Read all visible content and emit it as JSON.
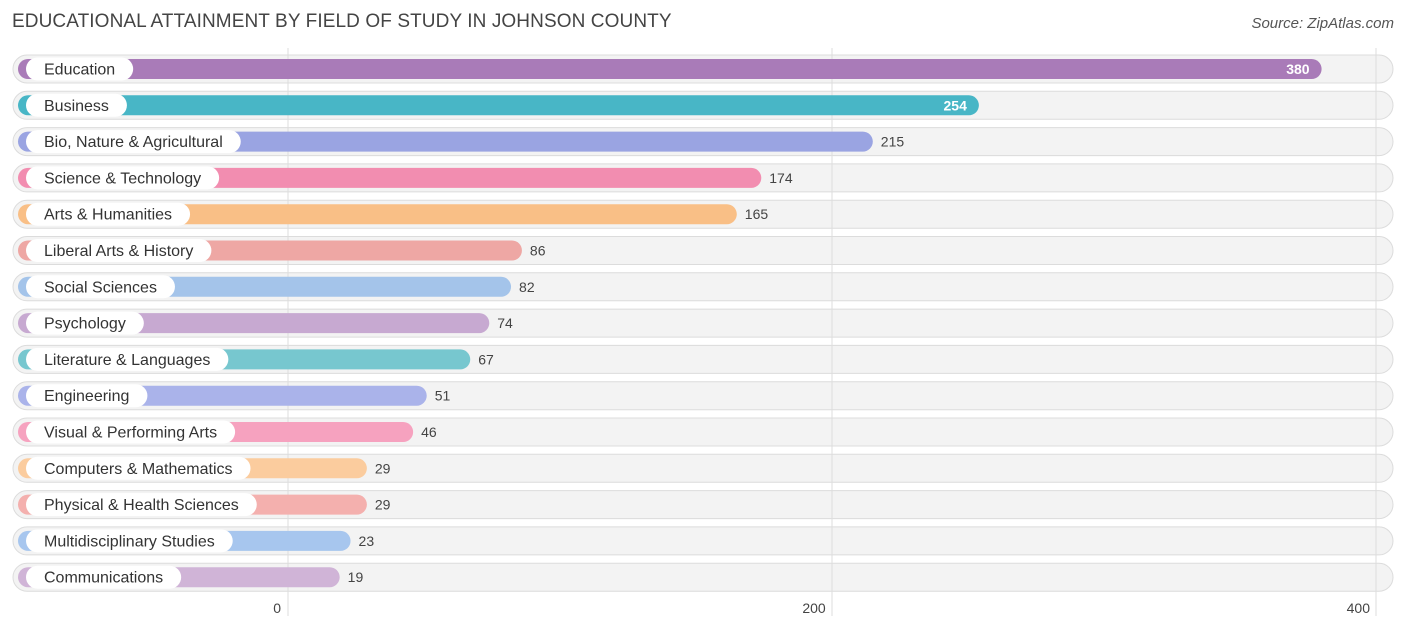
{
  "chart_data": {
    "type": "bar",
    "orientation": "horizontal",
    "title": "EDUCATIONAL ATTAINMENT BY FIELD OF STUDY IN JOHNSON COUNTY",
    "source": "Source: ZipAtlas.com",
    "xlim": [
      0,
      400
    ],
    "ticks": [
      0,
      200,
      400
    ],
    "categories": [
      "Education",
      "Business",
      "Bio, Nature & Agricultural",
      "Science & Technology",
      "Arts & Humanities",
      "Liberal Arts & History",
      "Social Sciences",
      "Psychology",
      "Literature & Languages",
      "Engineering",
      "Visual & Performing Arts",
      "Computers & Mathematics",
      "Physical & Health Sciences",
      "Multidisciplinary Studies",
      "Communications"
    ],
    "values": [
      380,
      254,
      215,
      174,
      165,
      86,
      82,
      74,
      67,
      51,
      46,
      29,
      29,
      23,
      19
    ],
    "colors": [
      "#a97bb8",
      "#48b6c6",
      "#9aa4e2",
      "#f28db0",
      "#f9bf86",
      "#eea7a4",
      "#a4c4ea",
      "#c7a9d1",
      "#77c7cf",
      "#aab3ea",
      "#f6a2bf",
      "#fbcc9e",
      "#f4b0ae",
      "#a7c6ee",
      "#d0b4d7"
    ]
  }
}
